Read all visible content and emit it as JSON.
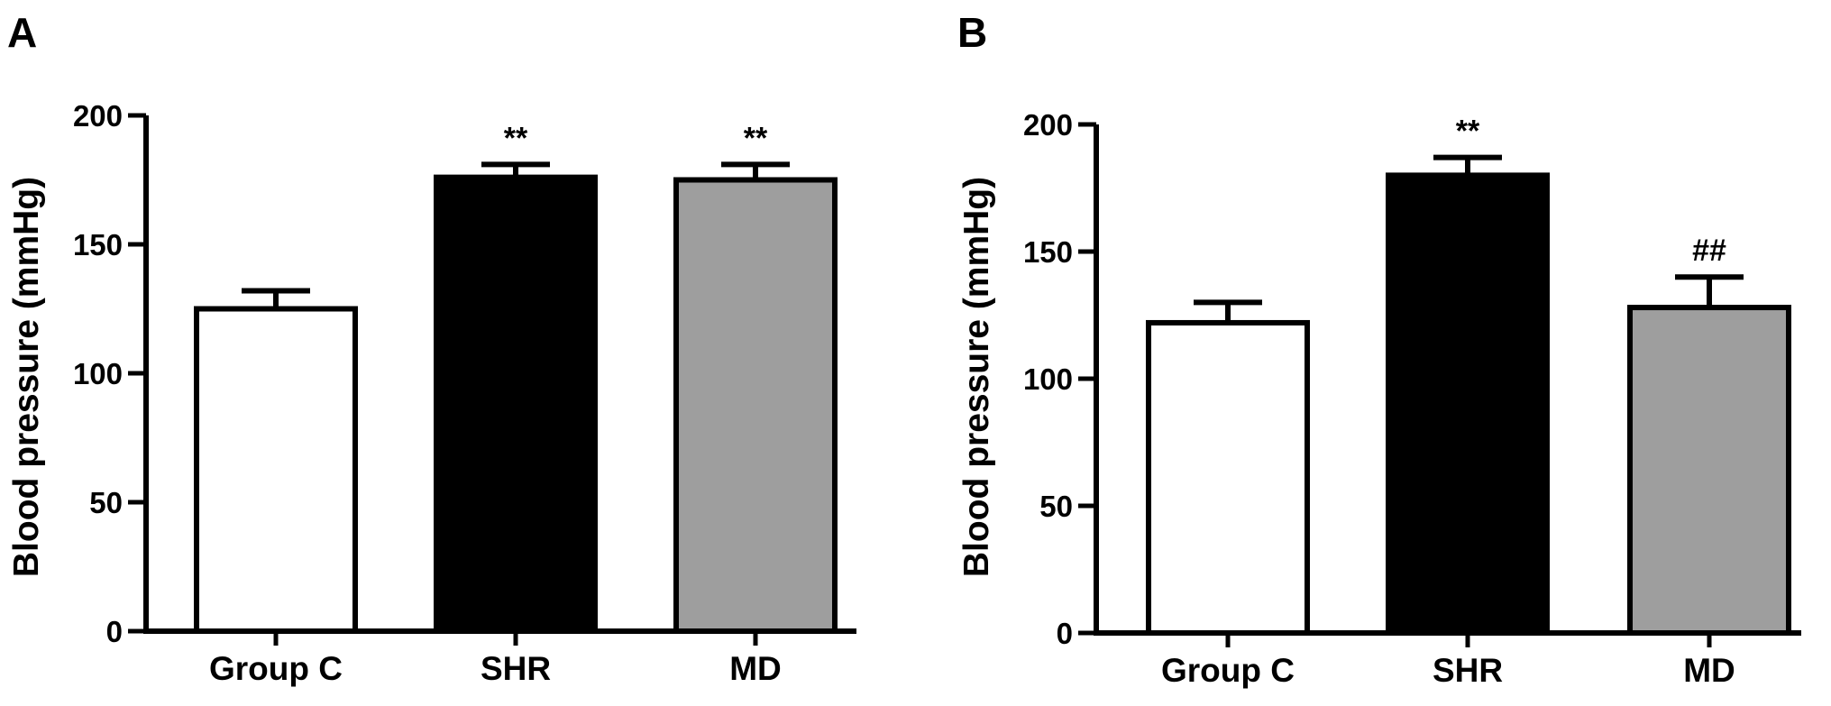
{
  "chart_data": [
    {
      "panel": "A",
      "type": "bar",
      "ylabel": "Blood pressure (mmHg)",
      "categories": [
        "Group C",
        "SHR",
        "MD"
      ],
      "values": [
        125,
        176,
        175
      ],
      "errors": [
        7,
        5,
        6
      ],
      "annotations": [
        "",
        "**",
        "**"
      ],
      "bar_colors": [
        "#ffffff",
        "#000000",
        "#9e9e9e"
      ],
      "ylim": [
        0,
        200
      ],
      "yticks": [
        0,
        50,
        100,
        150,
        200
      ],
      "grid": false,
      "legend": false
    },
    {
      "panel": "B",
      "type": "bar",
      "ylabel": "Blood pressure (mmHg)",
      "categories": [
        "Group C",
        "SHR",
        "MD"
      ],
      "values": [
        122,
        180,
        128
      ],
      "errors": [
        8,
        7,
        12
      ],
      "annotations": [
        "",
        "**",
        "##"
      ],
      "bar_colors": [
        "#ffffff",
        "#000000",
        "#9e9e9e"
      ],
      "ylim": [
        0,
        200
      ],
      "yticks": [
        0,
        50,
        100,
        150,
        200
      ],
      "grid": false,
      "legend": false
    }
  ]
}
